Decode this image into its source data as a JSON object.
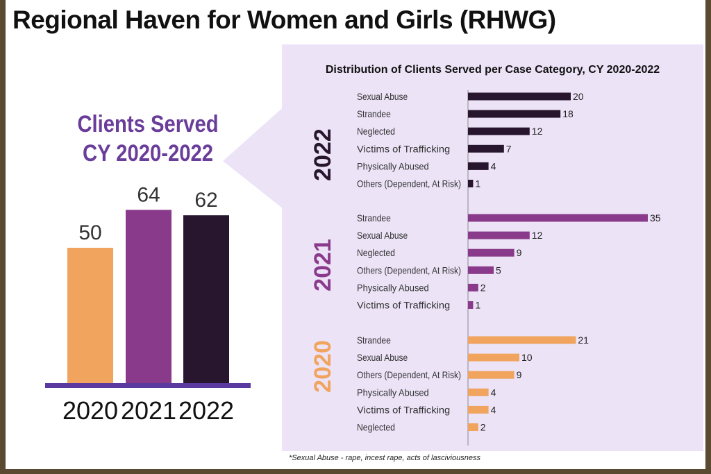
{
  "header": {
    "title": "Regional Haven for Women and Girls (RHWG)"
  },
  "clients_served": {
    "title_line1": "Clients Served",
    "title_line2": "CY 2020-2022"
  },
  "footnote": "*Sexual Abuse - rape, incest rape, acts of lasciviousness",
  "colors": {
    "y2020": "#f0a45e",
    "y2021": "#8a3a8a",
    "y2022": "#28152e",
    "axis": "#5a3aa0",
    "panel": "#ece3f7",
    "title_purple": "#6a3d9a"
  },
  "chart_data": [
    {
      "type": "bar",
      "title": "",
      "categories": [
        "2020",
        "2021",
        "2022"
      ],
      "values": [
        50,
        64,
        62
      ],
      "ylim": [
        0,
        80
      ],
      "grid": false,
      "data_labels": true
    },
    {
      "type": "bar",
      "orientation": "horizontal",
      "title": "Distribution of Clients Served per Case Category, CY 2020-2022",
      "xlim": [
        0,
        40
      ],
      "grid": false,
      "groups": [
        {
          "label": "2022",
          "color": "#28152e",
          "categories": [
            "Sexual Abuse",
            "Strandee",
            "Neglected",
            "Victims of Trafficking",
            "Physically Abused",
            "Others (Dependent, At Risk)"
          ],
          "values": [
            20,
            18,
            12,
            7,
            4,
            1
          ]
        },
        {
          "label": "2021",
          "color": "#8a3a8a",
          "categories": [
            "Strandee",
            "Sexual Abuse",
            "Neglected",
            "Others (Dependent, At Risk)",
            "Physically Abused",
            "Victims of Trafficking"
          ],
          "values": [
            35,
            12,
            9,
            5,
            2,
            1
          ]
        },
        {
          "label": "2020",
          "color": "#f0a45e",
          "categories": [
            "Strandee",
            "Sexual Abuse",
            "Others (Dependent, At Risk)",
            "Physically Abused",
            "Victims of Trafficking",
            "Neglected"
          ],
          "values": [
            21,
            10,
            9,
            4,
            4,
            2
          ]
        }
      ]
    }
  ]
}
